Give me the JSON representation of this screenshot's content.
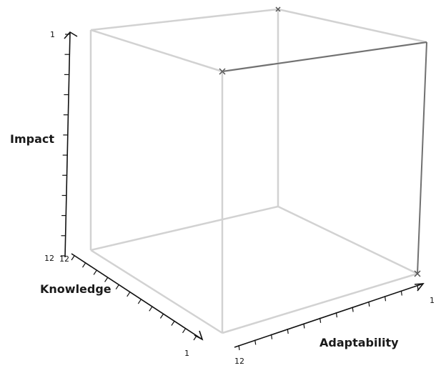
{
  "chart_data": {
    "type": "scatter",
    "title": "",
    "axes": {
      "impact": {
        "label": "Impact",
        "min": 1,
        "max": 12,
        "tick_labels": [
          "1",
          "12"
        ]
      },
      "knowledge": {
        "label": "Knowledge",
        "min": 1,
        "max": 12,
        "tick_labels": [
          "12",
          "1"
        ]
      },
      "adaptability": {
        "label": "Adaptability",
        "min": 1,
        "max": 12,
        "tick_labels": [
          "12",
          "1"
        ]
      }
    },
    "points": [
      {
        "adaptability": 1,
        "knowledge": 12,
        "impact": 1
      }
    ],
    "colors": {
      "point": "#8c9591",
      "cube": "#d2d2d2",
      "axis": "#111111"
    },
    "grid": false
  }
}
